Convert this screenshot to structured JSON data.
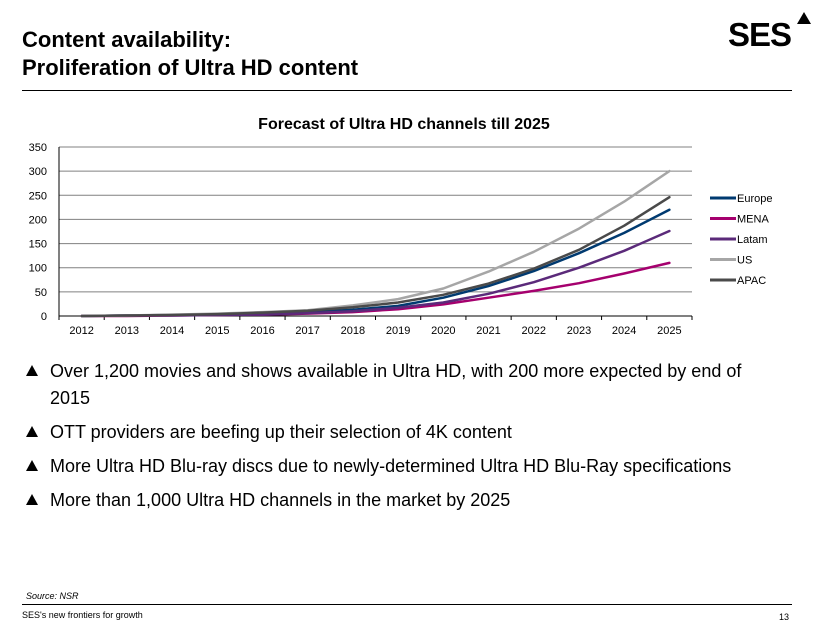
{
  "header": {
    "title_line1": "Content availability:",
    "title_line2": "Proliferation of Ultra HD content",
    "logo_text": "SES"
  },
  "chart_data": {
    "type": "line",
    "title": "Forecast of Ultra HD channels till 2025",
    "xlabel": "",
    "ylabel": "",
    "x": [
      "2012",
      "2013",
      "2014",
      "2015",
      "2016",
      "2017",
      "2018",
      "2019",
      "2020",
      "2021",
      "2022",
      "2023",
      "2024",
      "2025"
    ],
    "ylim": [
      0,
      350
    ],
    "yticks": [
      0,
      50,
      100,
      150,
      200,
      250,
      300,
      350
    ],
    "grid": true,
    "legend": "right",
    "series": [
      {
        "name": "Europe",
        "color": "#003a70",
        "values": [
          0,
          1,
          2,
          3,
          5,
          8,
          13,
          21,
          38,
          62,
          93,
          130,
          172,
          220
        ]
      },
      {
        "name": "MENA",
        "color": "#a5006e",
        "values": [
          0,
          0,
          1,
          2,
          3,
          5,
          8,
          14,
          24,
          38,
          52,
          68,
          88,
          110
        ]
      },
      {
        "name": "Latam",
        "color": "#5b2a7a",
        "values": [
          0,
          1,
          1,
          2,
          3,
          6,
          10,
          17,
          28,
          46,
          70,
          100,
          135,
          176
        ]
      },
      {
        "name": "US",
        "color": "#a6a6a6",
        "values": [
          0,
          1,
          3,
          5,
          8,
          12,
          22,
          35,
          57,
          92,
          133,
          181,
          237,
          300
        ]
      },
      {
        "name": "APAC",
        "color": "#4a4a4a",
        "values": [
          0,
          1,
          2,
          4,
          7,
          11,
          18,
          28,
          44,
          67,
          98,
          137,
          187,
          246
        ]
      }
    ]
  },
  "bullets": [
    "Over 1,200 movies and shows available in Ultra HD, with 200 more expected by end of 2015",
    "OTT providers are beefing up their selection of 4K content",
    "More Ultra HD Blu-ray discs due to newly-determined Ultra HD Blu-Ray specifications",
    "More than 1,000 Ultra HD channels in the market by 2025"
  ],
  "source": "Source: NSR",
  "footer": {
    "text": "SES's new frontiers for growth",
    "page": "13"
  }
}
